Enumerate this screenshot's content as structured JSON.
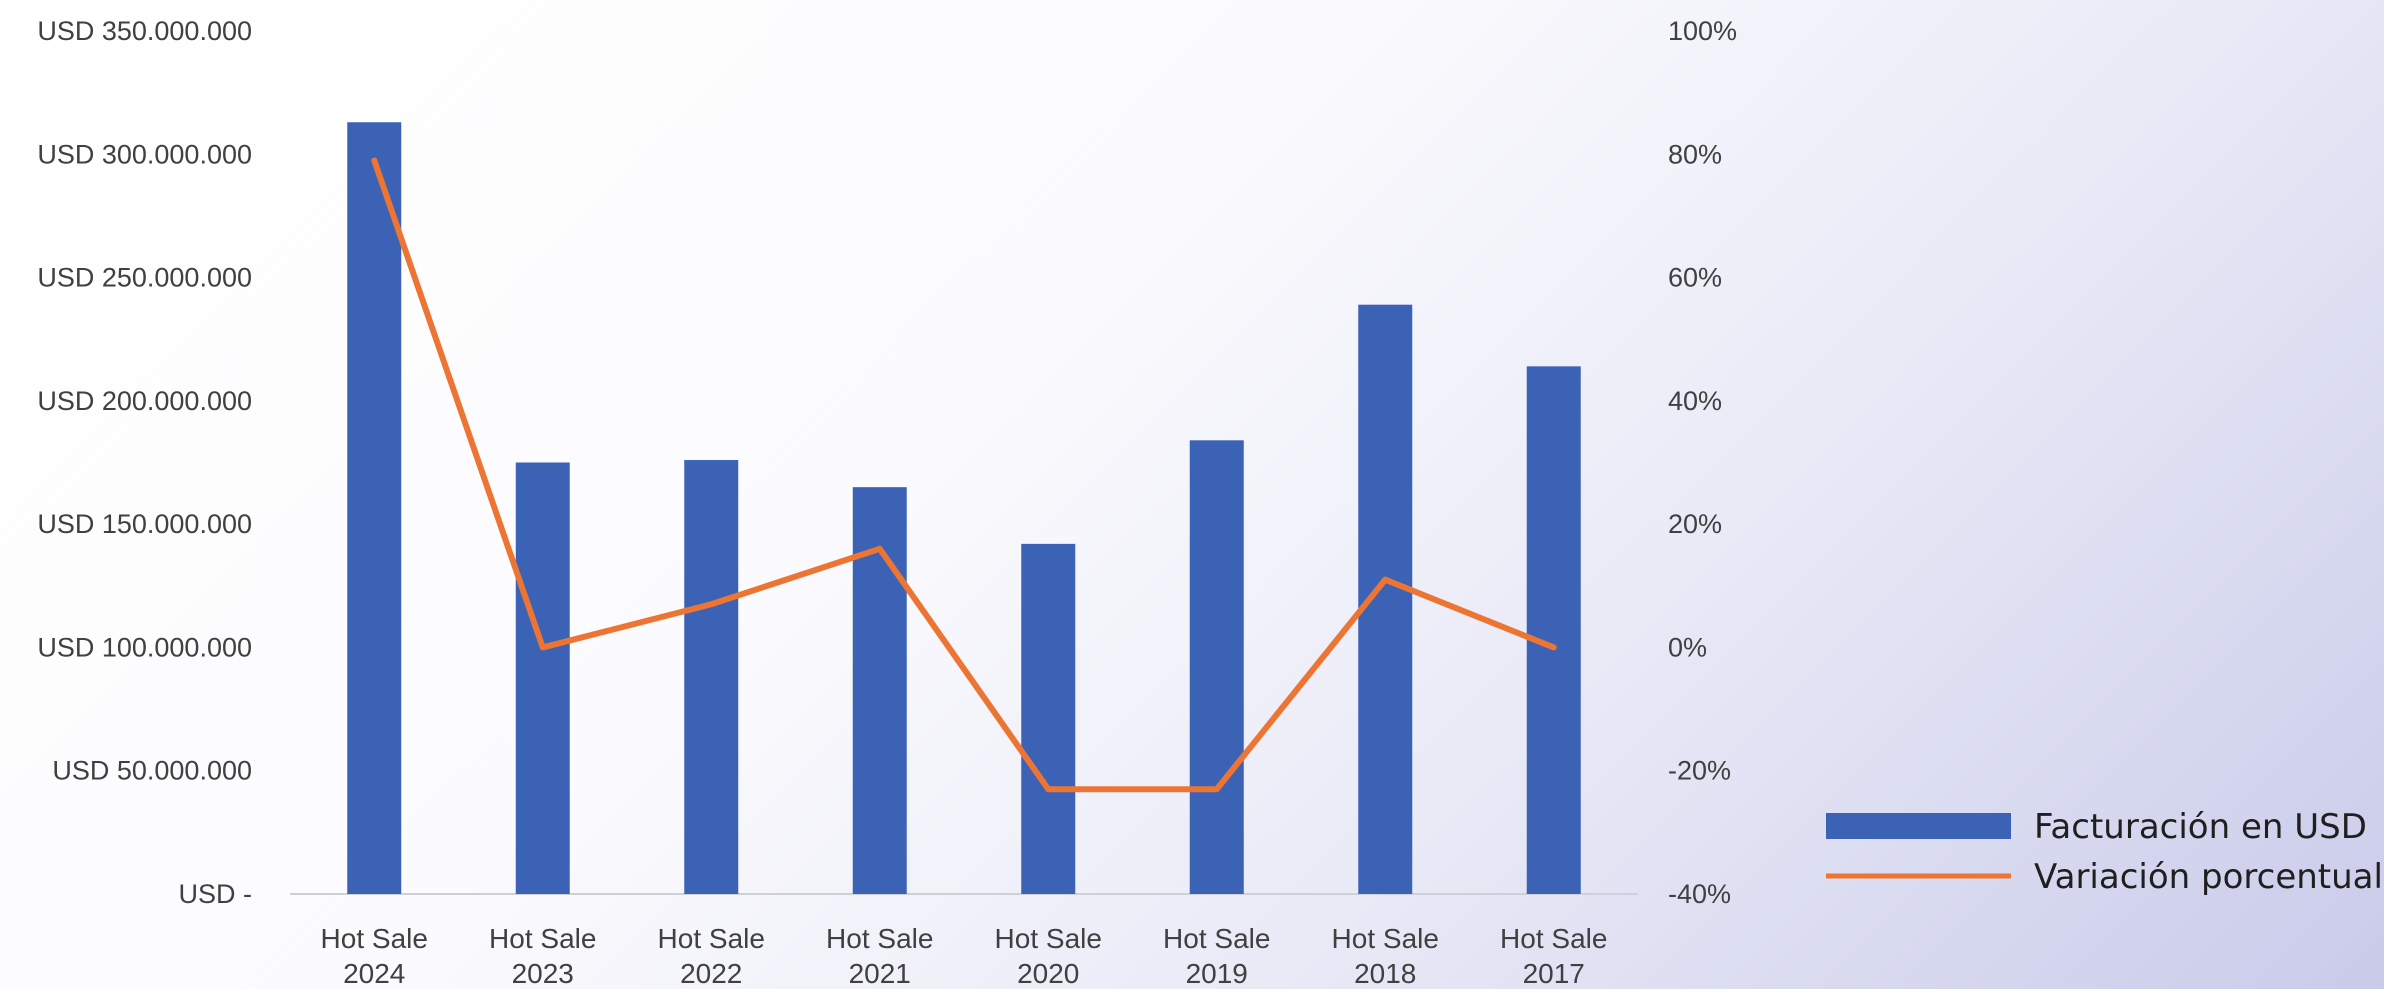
{
  "chart_data": {
    "type": "bar+line",
    "categories": [
      [
        "Hot Sale",
        "2024"
      ],
      [
        "Hot Sale",
        "2023"
      ],
      [
        "Hot Sale",
        "2022"
      ],
      [
        "Hot Sale",
        "2021"
      ],
      [
        "Hot Sale",
        "2020"
      ],
      [
        "Hot Sale",
        "2019"
      ],
      [
        "Hot Sale",
        "2018"
      ],
      [
        "Hot Sale",
        "2017"
      ]
    ],
    "series": [
      {
        "name": "Facturación en USD",
        "type": "bar",
        "axis": "left",
        "color": "#3c62b6",
        "values": [
          313000000,
          175000000,
          176000000,
          165000000,
          142000000,
          184000000,
          239000000,
          214000000
        ]
      },
      {
        "name": "Variación porcentual",
        "type": "line",
        "axis": "right",
        "color": "#ec7534",
        "values": [
          79,
          0,
          7,
          16,
          -23,
          -23,
          11,
          0
        ]
      }
    ],
    "left_axis": {
      "range": [
        0,
        350000000
      ],
      "ticks": [
        0,
        50000000,
        100000000,
        150000000,
        200000000,
        250000000,
        300000000,
        350000000
      ],
      "tick_labels": [
        "USD -",
        "USD 50.000.000",
        "USD 100.000.000",
        "USD 150.000.000",
        "USD 200.000.000",
        "USD 250.000.000",
        "USD 300.000.000",
        "USD 350.000.000"
      ]
    },
    "right_axis": {
      "range": [
        -40,
        100
      ],
      "ticks": [
        -40,
        -20,
        0,
        20,
        40,
        60,
        80,
        100
      ],
      "tick_labels": [
        "-40%",
        "-20%",
        "0%",
        "20%",
        "40%",
        "60%",
        "80%",
        "100%"
      ]
    },
    "grid": false,
    "legend_position": "bottom-right"
  }
}
